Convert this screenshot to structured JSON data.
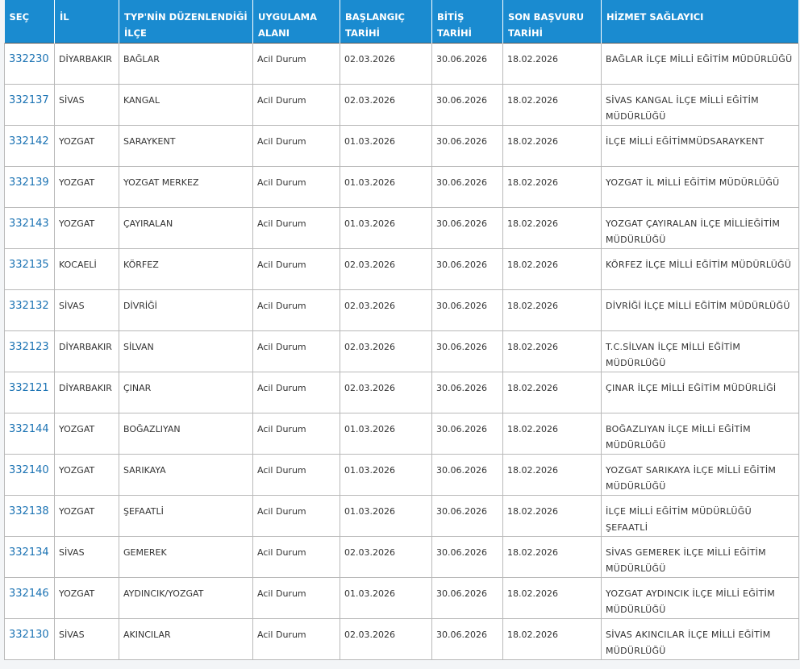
{
  "table": {
    "header": [
      [
        "SEÇ"
      ],
      [
        "İL"
      ],
      [
        "TYP'NİN DÜZENLENDİĞİ",
        "İLÇE"
      ],
      [
        "UYGULAMA",
        "ALANI"
      ],
      [
        "BAŞLANGIÇ",
        "TARİHİ"
      ],
      [
        "BİTİŞ",
        "TARİHİ"
      ],
      [
        "SON BAŞVURU",
        "TARİHİ"
      ],
      [
        "HİZMET SAĞLAYICI"
      ]
    ],
    "rows": [
      [
        "332230",
        "DİYARBAKIR",
        "BAĞLAR",
        "Acil Durum",
        "02.03.2026",
        "30.06.2026",
        "18.02.2026",
        "BAĞLAR İLÇE MİLLİ EĞİTİM MÜDÜRLÜĞÜ"
      ],
      [
        "332137",
        "SİVAS",
        "KANGAL",
        "Acil Durum",
        "02.03.2026",
        "30.06.2026",
        "18.02.2026",
        "SİVAS KANGAL İLÇE MİLLİ EĞİTİM MÜDÜRLÜĞÜ"
      ],
      [
        "332142",
        "YOZGAT",
        "SARAYKENT",
        "Acil Durum",
        "01.03.2026",
        "30.06.2026",
        "18.02.2026",
        "İLÇE MİLLİ EĞİTİMMÜDSARAYKENT"
      ],
      [
        "332139",
        "YOZGAT",
        "YOZGAT MERKEZ",
        "Acil Durum",
        "01.03.2026",
        "30.06.2026",
        "18.02.2026",
        "YOZGAT İL MİLLİ EĞİTİM MÜDÜRLÜĞÜ"
      ],
      [
        "332143",
        "YOZGAT",
        "ÇAYIRALAN",
        "Acil Durum",
        "01.03.2026",
        "30.06.2026",
        "18.02.2026",
        "YOZGAT ÇAYIRALAN İLÇE MİLLİEĞİTİM MÜDÜRLÜĞÜ"
      ],
      [
        "332135",
        "KOCAELİ",
        "KÖRFEZ",
        "Acil Durum",
        "02.03.2026",
        "30.06.2026",
        "18.02.2026",
        "KÖRFEZ İLÇE MİLLİ EĞİTİM MÜDÜRLÜĞÜ"
      ],
      [
        "332132",
        "SİVAS",
        "DİVRİĞİ",
        "Acil Durum",
        "02.03.2026",
        "30.06.2026",
        "18.02.2026",
        "DİVRİĞİ İLÇE MİLLİ EĞİTİM MÜDÜRLÜĞÜ"
      ],
      [
        "332123",
        "DİYARBAKIR",
        "SİLVAN",
        "Acil Durum",
        "02.03.2026",
        "30.06.2026",
        "18.02.2026",
        "T.C.SİLVAN İLÇE MİLLİ EĞİTİM MÜDÜRLÜĞÜ"
      ],
      [
        "332121",
        "DİYARBAKIR",
        "ÇINAR",
        "Acil Durum",
        "02.03.2026",
        "30.06.2026",
        "18.02.2026",
        "ÇINAR İLÇE MİLLİ EĞİTİM MÜDÜRLİĞİ"
      ],
      [
        "332144",
        "YOZGAT",
        "BOĞAZLIYAN",
        "Acil Durum",
        "01.03.2026",
        "30.06.2026",
        "18.02.2026",
        "BOĞAZLIYAN İLÇE MİLLİ EĞİTİM MÜDÜRLÜĞÜ"
      ],
      [
        "332140",
        "YOZGAT",
        "SARIKAYA",
        "Acil Durum",
        "01.03.2026",
        "30.06.2026",
        "18.02.2026",
        "YOZGAT SARIKAYA İLÇE MİLLİ EĞİTİM MÜDÜRLÜĞÜ"
      ],
      [
        "332138",
        "YOZGAT",
        "ŞEFAATLİ",
        "Acil Durum",
        "01.03.2026",
        "30.06.2026",
        "18.02.2026",
        "İLÇE MİLLİ EĞİTİM MÜDÜRLÜĞÜ ŞEFAATLİ"
      ],
      [
        "332134",
        "SİVAS",
        "GEMEREK",
        "Acil Durum",
        "02.03.2026",
        "30.06.2026",
        "18.02.2026",
        "SİVAS GEMEREK İLÇE MİLLİ EĞİTİM MÜDÜRLÜĞÜ"
      ],
      [
        "332146",
        "YOZGAT",
        "AYDINCIK/YOZGAT",
        "Acil Durum",
        "01.03.2026",
        "30.06.2026",
        "18.02.2026",
        "YOZGAT AYDINCIK İLÇE MİLLİ EĞİTİM MÜDÜRLÜĞÜ"
      ],
      [
        "332130",
        "SİVAS",
        "AKINCILAR",
        "Acil Durum",
        "02.03.2026",
        "30.06.2026",
        "18.02.2026",
        "SİVAS AKINCILAR İLÇE MİLLİ EĞİTİM MÜDÜRLÜĞÜ"
      ]
    ]
  }
}
